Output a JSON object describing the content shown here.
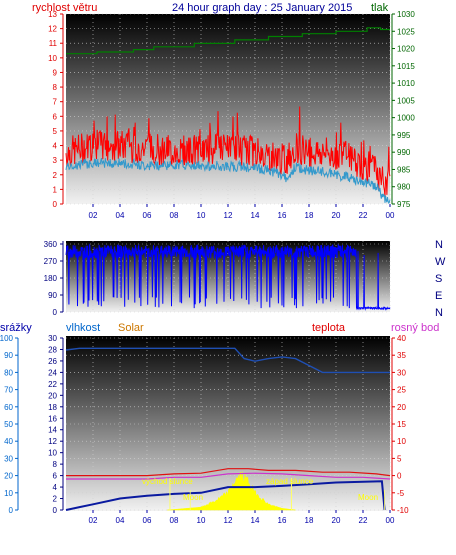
{
  "header": {
    "left_label": "rychlost větru",
    "title": "24 hour graph day : 25 January 2015",
    "right_label": "tlak"
  },
  "legend_bottom": {
    "rain": "srážky",
    "humidity": "vlhkost",
    "solar": "Solar",
    "temperature": "teplota",
    "dewpoint": "rosný bod"
  },
  "annotations": {
    "sunrise": "východ slunce",
    "sunset": "západ slunce",
    "moon_up": "Moon",
    "moon_down": "Moon"
  },
  "colors": {
    "wind_gust": "#ff0000",
    "wind_avg": "#3399cc",
    "pressure": "#008000",
    "direction": "#0000ff",
    "humidity": "#1f4fb3",
    "rain": "#0a1aa0",
    "solar": "#ffff00",
    "temperature": "#e01010",
    "dewpoint": "#cc33cc",
    "left_axis_red": "#e00000",
    "left_axis_blue": "#0066cc",
    "right_axis_green": "#006600",
    "right_axis_red": "#e00000",
    "dir_axis": "#000080"
  },
  "chart_data": [
    {
      "type": "line",
      "name": "wind-pressure",
      "x_ticks": [
        "02",
        "04",
        "06",
        "08",
        "10",
        "12",
        "14",
        "16",
        "18",
        "20",
        "22",
        "00"
      ],
      "x_range_hours": [
        0,
        24
      ],
      "left_axis": {
        "label": "rychlost větru",
        "ylim": [
          0,
          13
        ],
        "ticks": [
          0,
          1,
          2,
          3,
          4,
          5,
          6,
          7,
          8,
          9,
          10,
          11,
          12,
          13
        ]
      },
      "right_axis": {
        "label": "tlak",
        "ylim": [
          975,
          1030
        ],
        "ticks": [
          975,
          980,
          985,
          990,
          995,
          1000,
          1005,
          1010,
          1015,
          1020,
          1025,
          1030
        ]
      },
      "series": [
        {
          "name": "gust",
          "axis": "left",
          "keyframes": [
            [
              0,
              3.5
            ],
            [
              2,
              4.0
            ],
            [
              4,
              4.0
            ],
            [
              6,
              3.8
            ],
            [
              8,
              3.6
            ],
            [
              10,
              3.7
            ],
            [
              12,
              3.8
            ],
            [
              14,
              3.6
            ],
            [
              15.5,
              3.2
            ],
            [
              16.3,
              3.0
            ],
            [
              17,
              3.9
            ],
            [
              18,
              3.6
            ],
            [
              19,
              3.5
            ],
            [
              20,
              3.4
            ],
            [
              21,
              3.2
            ],
            [
              22,
              2.6
            ],
            [
              23,
              2.3
            ],
            [
              23.6,
              1.2
            ],
            [
              24,
              1.5
            ]
          ]
        },
        {
          "name": "average",
          "axis": "left",
          "keyframes": [
            [
              0,
              2.6
            ],
            [
              2,
              2.8
            ],
            [
              4,
              2.8
            ],
            [
              6,
              2.6
            ],
            [
              8,
              2.7
            ],
            [
              10,
              2.6
            ],
            [
              12,
              2.6
            ],
            [
              14,
              2.5
            ],
            [
              15.5,
              2.2
            ],
            [
              16.3,
              1.8
            ],
            [
              17,
              2.5
            ],
            [
              18,
              2.3
            ],
            [
              19,
              2.2
            ],
            [
              20,
              2.0
            ],
            [
              21,
              1.8
            ],
            [
              22,
              1.5
            ],
            [
              23,
              1.2
            ],
            [
              23.6,
              0.3
            ],
            [
              24,
              0.2
            ]
          ]
        },
        {
          "name": "pressure",
          "axis": "right",
          "points": [
            [
              0,
              1018.5
            ],
            [
              2.3,
              1018.5
            ],
            [
              2.3,
              1019
            ],
            [
              5,
              1019
            ],
            [
              5,
              1019.7
            ],
            [
              6.5,
              1019.7
            ],
            [
              6.5,
              1020.5
            ],
            [
              9.5,
              1020.5
            ],
            [
              9.5,
              1021.5
            ],
            [
              12.5,
              1021.5
            ],
            [
              12.5,
              1022.5
            ],
            [
              15,
              1022.5
            ],
            [
              15,
              1023.5
            ],
            [
              17.5,
              1023.5
            ],
            [
              17.5,
              1024.3
            ],
            [
              20,
              1024.3
            ],
            [
              20,
              1025
            ],
            [
              22.3,
              1025
            ],
            [
              22.3,
              1026
            ],
            [
              23.3,
              1026
            ],
            [
              23.3,
              1025.5
            ],
            [
              24,
              1025.5
            ]
          ]
        }
      ]
    },
    {
      "type": "line",
      "name": "wind-direction",
      "right_labels": [
        "N",
        "W",
        "S",
        "E",
        "N"
      ],
      "ylim": [
        0,
        360
      ],
      "ticks": [
        0,
        90,
        180,
        270,
        360
      ],
      "series": [
        {
          "name": "direction",
          "base_deg": 320,
          "drops_to_deg": 20,
          "calm_from_hour": 21.5,
          "calm_deg": 20
        }
      ]
    },
    {
      "type": "line",
      "name": "temp-humidity-solar",
      "left_axis": {
        "label": "vlhkost",
        "ylim": [
          0,
          100
        ],
        "ticks": [
          0,
          10,
          20,
          30,
          40,
          50,
          60,
          70,
          80,
          90,
          100
        ]
      },
      "left_axis_rain": {
        "label": "srážky",
        "ylim": [
          0,
          30
        ],
        "ticks": [
          0,
          2,
          4,
          6,
          8,
          10,
          12,
          14,
          16,
          18,
          20,
          22,
          24,
          26,
          28,
          30
        ]
      },
      "right_axis": {
        "label": "teplota",
        "ylim": [
          -10,
          40
        ],
        "ticks": [
          -10,
          -5,
          0,
          5,
          10,
          15,
          20,
          25,
          30,
          35,
          40
        ]
      },
      "series": [
        {
          "name": "humidity",
          "axis": "left",
          "points": [
            [
              0,
              93
            ],
            [
              1,
              94
            ],
            [
              3,
              94
            ],
            [
              10,
              94
            ],
            [
              12.5,
              94
            ],
            [
              13.2,
              88
            ],
            [
              14,
              86.5
            ],
            [
              15,
              88
            ],
            [
              16,
              89
            ],
            [
              17,
              88
            ],
            [
              18,
              84
            ],
            [
              19,
              80
            ],
            [
              20,
              80
            ],
            [
              24,
              80
            ]
          ]
        },
        {
          "name": "temperature",
          "axis": "right",
          "points": [
            [
              0,
              0
            ],
            [
              3,
              0
            ],
            [
              6,
              0
            ],
            [
              8,
              0.5
            ],
            [
              10,
              0.7
            ],
            [
              12,
              2
            ],
            [
              13.5,
              2
            ],
            [
              15,
              1.5
            ],
            [
              17,
              1.5
            ],
            [
              19,
              1
            ],
            [
              21,
              1
            ],
            [
              23,
              0.5
            ],
            [
              24,
              0
            ]
          ]
        },
        {
          "name": "dewpoint",
          "axis": "right",
          "points": [
            [
              0,
              -1
            ],
            [
              3,
              -1
            ],
            [
              6,
              -1
            ],
            [
              8,
              -0.5
            ],
            [
              10,
              -0.5
            ],
            [
              12,
              0.5
            ],
            [
              14,
              0.7
            ],
            [
              16,
              0.5
            ],
            [
              18,
              0
            ],
            [
              20,
              -0.5
            ],
            [
              22,
              -0.5
            ],
            [
              24,
              -1
            ]
          ]
        },
        {
          "name": "rain",
          "axis": "left_rain",
          "points": [
            [
              0,
              0
            ],
            [
              1,
              0.5
            ],
            [
              2,
              1
            ],
            [
              4,
              2
            ],
            [
              6,
              2.5
            ],
            [
              8,
              2.8
            ],
            [
              10,
              3
            ],
            [
              12,
              4
            ],
            [
              14,
              4
            ],
            [
              16,
              4.2
            ],
            [
              18,
              4.5
            ],
            [
              20,
              4.8
            ],
            [
              23.4,
              5
            ],
            [
              23.6,
              0
            ]
          ]
        },
        {
          "name": "solar",
          "axis": "left_rain",
          "points": [
            [
              7.5,
              0
            ],
            [
              9,
              0.3
            ],
            [
              10,
              0.5
            ],
            [
              11,
              1.5
            ],
            [
              12,
              3
            ],
            [
              12.5,
              5
            ],
            [
              13,
              6
            ],
            [
              13.5,
              5
            ],
            [
              14,
              3
            ],
            [
              15,
              1
            ],
            [
              16,
              0.3
            ],
            [
              17,
              0
            ]
          ]
        }
      ],
      "markers": {
        "sunrise_hour": 7.7,
        "sunset_hour": 16.7,
        "moonrise_hour": 9.2,
        "moonset_hour": 23.6
      }
    }
  ]
}
